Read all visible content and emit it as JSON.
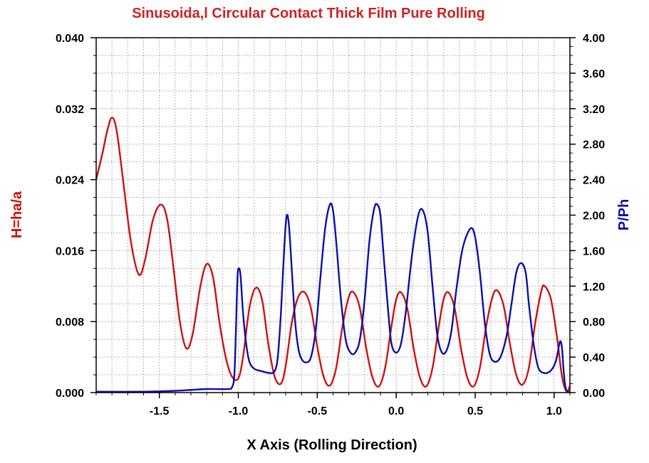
{
  "chart_data": {
    "type": "line",
    "title": "Sinusoida,l Circular Contact Thick Film Pure Rolling",
    "xlabel": "X Axis (Rolling Direction)",
    "ylabel_left": "H=ha/a",
    "ylabel_right": "P/Ph",
    "xlim": [
      -1.9,
      1.1
    ],
    "ylim_left": [
      0.0,
      0.04
    ],
    "ylim_right": [
      0.0,
      4.0
    ],
    "grid": true,
    "x_ticks": [
      "-1.5",
      "-1.0",
      "-0.5",
      "0.0",
      "0.5",
      "1.0"
    ],
    "y_left_ticks": [
      "0.000",
      "0.008",
      "0.016",
      "0.024",
      "0.032",
      "0.040"
    ],
    "y_right_ticks": [
      "0.00",
      "0.40",
      "0.80",
      "1.20",
      "1.60",
      "2.00",
      "2.40",
      "2.80",
      "3.20",
      "3.60",
      "4.00"
    ],
    "colors": {
      "film": "#cc1111",
      "pressure": "#0a10a8",
      "title": "#cc2222",
      "grid": "#b4b4b4"
    },
    "series": [
      {
        "axis": "left",
        "color": "#cc1111",
        "points": [
          [
            -1.9,
            0.024
          ],
          [
            -1.86,
            0.027
          ],
          [
            -1.83,
            0.0295
          ],
          [
            -1.8,
            0.031
          ],
          [
            -1.77,
            0.0295
          ],
          [
            -1.73,
            0.024
          ],
          [
            -1.68,
            0.017
          ],
          [
            -1.63,
            0.0133
          ],
          [
            -1.59,
            0.015
          ],
          [
            -1.54,
            0.0195
          ],
          [
            -1.49,
            0.0212
          ],
          [
            -1.45,
            0.0195
          ],
          [
            -1.41,
            0.014
          ],
          [
            -1.37,
            0.008
          ],
          [
            -1.33,
            0.005
          ],
          [
            -1.29,
            0.0065
          ],
          [
            -1.24,
            0.012
          ],
          [
            -1.2,
            0.0145
          ],
          [
            -1.16,
            0.013
          ],
          [
            -1.12,
            0.008
          ],
          [
            -1.08,
            0.004
          ],
          [
            -1.04,
            0.0018
          ],
          [
            -1.0,
            0.0016
          ],
          [
            -0.97,
            0.004
          ],
          [
            -0.93,
            0.0095
          ],
          [
            -0.89,
            0.0118
          ],
          [
            -0.85,
            0.0105
          ],
          [
            -0.81,
            0.0055
          ],
          [
            -0.77,
            0.0018
          ],
          [
            -0.73,
            0.001
          ],
          [
            -0.7,
            0.003
          ],
          [
            -0.66,
            0.008
          ],
          [
            -0.62,
            0.0108
          ],
          [
            -0.58,
            0.0113
          ],
          [
            -0.54,
            0.0095
          ],
          [
            -0.5,
            0.0052
          ],
          [
            -0.46,
            0.0018
          ],
          [
            -0.42,
            0.0008
          ],
          [
            -0.38,
            0.0028
          ],
          [
            -0.34,
            0.0075
          ],
          [
            -0.3,
            0.0108
          ],
          [
            -0.27,
            0.0113
          ],
          [
            -0.23,
            0.0095
          ],
          [
            -0.19,
            0.005
          ],
          [
            -0.15,
            0.0017
          ],
          [
            -0.11,
            0.0007
          ],
          [
            -0.07,
            0.0028
          ],
          [
            -0.03,
            0.0075
          ],
          [
            0.0,
            0.0105
          ],
          [
            0.03,
            0.0113
          ],
          [
            0.07,
            0.0095
          ],
          [
            0.11,
            0.005
          ],
          [
            0.15,
            0.0017
          ],
          [
            0.19,
            0.0007
          ],
          [
            0.23,
            0.0028
          ],
          [
            0.27,
            0.0075
          ],
          [
            0.3,
            0.0105
          ],
          [
            0.33,
            0.0113
          ],
          [
            0.37,
            0.0095
          ],
          [
            0.41,
            0.005
          ],
          [
            0.45,
            0.0017
          ],
          [
            0.49,
            0.0007
          ],
          [
            0.53,
            0.0028
          ],
          [
            0.57,
            0.0075
          ],
          [
            0.61,
            0.0108
          ],
          [
            0.64,
            0.0115
          ],
          [
            0.68,
            0.0098
          ],
          [
            0.72,
            0.0055
          ],
          [
            0.76,
            0.002
          ],
          [
            0.8,
            0.0009
          ],
          [
            0.84,
            0.0028
          ],
          [
            0.88,
            0.0078
          ],
          [
            0.92,
            0.0115
          ],
          [
            0.94,
            0.012
          ],
          [
            0.98,
            0.0105
          ],
          [
            1.02,
            0.006
          ],
          [
            1.05,
            0.0018
          ],
          [
            1.08,
            0.0001
          ],
          [
            1.1,
            0.0008
          ]
        ]
      },
      {
        "axis": "right",
        "color": "#0a10a8",
        "points": [
          [
            -1.9,
            0.01
          ],
          [
            -1.6,
            0.01
          ],
          [
            -1.4,
            0.02
          ],
          [
            -1.3,
            0.03
          ],
          [
            -1.2,
            0.04
          ],
          [
            -1.07,
            0.04
          ],
          [
            -1.04,
            0.06
          ],
          [
            -1.025,
            0.2
          ],
          [
            -1.015,
            0.7
          ],
          [
            -1.005,
            1.3
          ],
          [
            -0.995,
            1.4
          ],
          [
            -0.985,
            1.3
          ],
          [
            -0.97,
            0.9
          ],
          [
            -0.95,
            0.55
          ],
          [
            -0.93,
            0.35
          ],
          [
            -0.9,
            0.27
          ],
          [
            -0.85,
            0.24
          ],
          [
            -0.8,
            0.22
          ],
          [
            -0.77,
            0.24
          ],
          [
            -0.75,
            0.4
          ],
          [
            -0.73,
            0.9
          ],
          [
            -0.71,
            1.6
          ],
          [
            -0.695,
            1.98
          ],
          [
            -0.68,
            1.9
          ],
          [
            -0.66,
            1.35
          ],
          [
            -0.64,
            0.8
          ],
          [
            -0.62,
            0.5
          ],
          [
            -0.6,
            0.38
          ],
          [
            -0.57,
            0.34
          ],
          [
            -0.54,
            0.4
          ],
          [
            -0.51,
            0.7
          ],
          [
            -0.48,
            1.3
          ],
          [
            -0.45,
            1.85
          ],
          [
            -0.42,
            2.12
          ],
          [
            -0.4,
            2.05
          ],
          [
            -0.38,
            1.7
          ],
          [
            -0.35,
            1.05
          ],
          [
            -0.32,
            0.6
          ],
          [
            -0.29,
            0.45
          ],
          [
            -0.26,
            0.45
          ],
          [
            -0.23,
            0.6
          ],
          [
            -0.2,
            1.05
          ],
          [
            -0.17,
            1.7
          ],
          [
            -0.14,
            2.07
          ],
          [
            -0.12,
            2.12
          ],
          [
            -0.1,
            2.0
          ],
          [
            -0.08,
            1.55
          ],
          [
            -0.05,
            0.9
          ],
          [
            -0.03,
            0.55
          ],
          [
            0.0,
            0.45
          ],
          [
            0.03,
            0.55
          ],
          [
            0.06,
            0.9
          ],
          [
            0.1,
            1.55
          ],
          [
            0.14,
            2.0
          ],
          [
            0.17,
            2.05
          ],
          [
            0.2,
            1.8
          ],
          [
            0.23,
            1.2
          ],
          [
            0.26,
            0.65
          ],
          [
            0.29,
            0.45
          ],
          [
            0.32,
            0.48
          ],
          [
            0.35,
            0.7
          ],
          [
            0.38,
            1.15
          ],
          [
            0.42,
            1.62
          ],
          [
            0.47,
            1.85
          ],
          [
            0.5,
            1.75
          ],
          [
            0.53,
            1.35
          ],
          [
            0.56,
            0.8
          ],
          [
            0.59,
            0.45
          ],
          [
            0.62,
            0.35
          ],
          [
            0.66,
            0.4
          ],
          [
            0.7,
            0.65
          ],
          [
            0.73,
            1.0
          ],
          [
            0.76,
            1.35
          ],
          [
            0.79,
            1.46
          ],
          [
            0.82,
            1.35
          ],
          [
            0.84,
            1.0
          ],
          [
            0.87,
            0.55
          ],
          [
            0.9,
            0.28
          ],
          [
            0.94,
            0.22
          ],
          [
            0.98,
            0.25
          ],
          [
            1.01,
            0.35
          ],
          [
            1.03,
            0.52
          ],
          [
            1.04,
            0.58
          ],
          [
            1.05,
            0.5
          ],
          [
            1.06,
            0.25
          ],
          [
            1.07,
            0.08
          ],
          [
            1.08,
            0.02
          ],
          [
            1.1,
            0.0
          ]
        ]
      }
    ]
  }
}
